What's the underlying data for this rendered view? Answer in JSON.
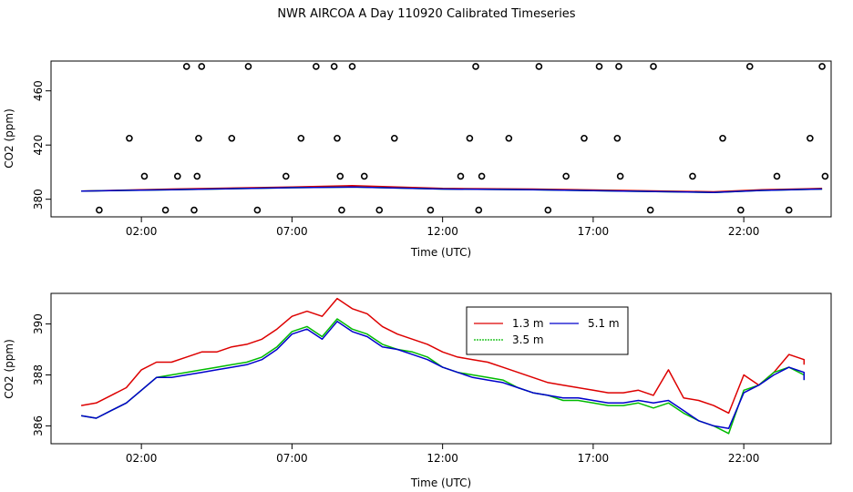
{
  "title": "NWR AIRCOA A  Day 110920  Calibrated Timeseries",
  "colors": {
    "1.3 m": "#dd0000",
    "3.5 m": "#00bb00",
    "5.1 m": "#0000cc",
    "axis": "#000000"
  },
  "chart_data": [
    {
      "type": "scatter",
      "xlabel": "Time (UTC)",
      "ylabel": "CO2 (ppm)",
      "xlim": [
        -1.0,
        24.9
      ],
      "ylim": [
        367,
        482
      ],
      "x_ticks": [
        2,
        7,
        12,
        17,
        22
      ],
      "x_tick_labels": [
        "02:00",
        "07:00",
        "12:00",
        "17:00",
        "22:00"
      ],
      "y_ticks": [
        380,
        420,
        460
      ],
      "y_tick_labels": [
        "380",
        "420",
        "460"
      ],
      "legend": false,
      "grid": false,
      "points": [
        [
          0.6,
          372
        ],
        [
          1.6,
          425
        ],
        [
          2.1,
          397
        ],
        [
          2.8,
          372
        ],
        [
          3.2,
          397
        ],
        [
          3.5,
          478
        ],
        [
          3.75,
          372
        ],
        [
          3.85,
          397
        ],
        [
          3.9,
          425
        ],
        [
          4.0,
          478
        ],
        [
          5.0,
          425
        ],
        [
          5.55,
          478
        ],
        [
          5.85,
          372
        ],
        [
          6.8,
          397
        ],
        [
          7.3,
          425
        ],
        [
          7.8,
          478
        ],
        [
          8.4,
          478
        ],
        [
          8.5,
          425
        ],
        [
          8.6,
          397
        ],
        [
          8.65,
          372
        ],
        [
          9.0,
          478
        ],
        [
          9.4,
          397
        ],
        [
          9.9,
          372
        ],
        [
          10.4,
          425
        ],
        [
          11.6,
          372
        ],
        [
          12.6,
          397
        ],
        [
          12.9,
          425
        ],
        [
          13.1,
          478
        ],
        [
          13.2,
          372
        ],
        [
          13.3,
          397
        ],
        [
          14.2,
          425
        ],
        [
          15.2,
          478
        ],
        [
          15.5,
          372
        ],
        [
          16.1,
          397
        ],
        [
          16.7,
          425
        ],
        [
          17.2,
          478
        ],
        [
          17.8,
          425
        ],
        [
          17.85,
          478
        ],
        [
          17.9,
          397
        ],
        [
          18.9,
          372
        ],
        [
          19.0,
          478
        ],
        [
          20.3,
          397
        ],
        [
          21.3,
          425
        ],
        [
          21.9,
          372
        ],
        [
          22.2,
          478
        ],
        [
          23.1,
          397
        ],
        [
          23.5,
          372
        ],
        [
          24.2,
          425
        ],
        [
          24.6,
          478
        ],
        [
          24.7,
          397
        ]
      ],
      "series": [
        {
          "name": "1.3 m",
          "x": [
            0,
            3,
            7,
            9,
            12,
            15,
            18,
            21,
            22.6,
            24.6
          ],
          "values": [
            386,
            387.5,
            389,
            390,
            388,
            387.5,
            386.5,
            385.5,
            387,
            388
          ]
        },
        {
          "name": "3.5 m",
          "x": [
            0,
            3,
            7,
            9,
            12,
            15,
            18,
            21,
            22.6,
            24.6
          ],
          "values": [
            386,
            387,
            388.5,
            389,
            387.5,
            387,
            386,
            385,
            386.5,
            387.5
          ]
        },
        {
          "name": "5.1 m",
          "x": [
            0,
            3,
            7,
            9,
            12,
            15,
            18,
            21,
            22.6,
            24.6
          ],
          "values": [
            386,
            387,
            388.5,
            389,
            387.5,
            387,
            386,
            385,
            386.5,
            387.5
          ]
        }
      ]
    },
    {
      "type": "line",
      "xlabel": "Time (UTC)",
      "ylabel": "CO2 (ppm)",
      "xlim": [
        -1.0,
        24.9
      ],
      "ylim": [
        385.3,
        391.2
      ],
      "x_ticks": [
        2,
        7,
        12,
        17,
        22
      ],
      "x_tick_labels": [
        "02:00",
        "07:00",
        "12:00",
        "17:00",
        "22:00"
      ],
      "y_ticks": [
        386,
        388,
        390
      ],
      "y_tick_labels": [
        "386",
        "388",
        "390"
      ],
      "legend": true,
      "legend_position": "top-center",
      "grid": false,
      "series": [
        {
          "name": "1.3 m",
          "x": [
            0,
            0.5,
            1,
            1.5,
            2,
            2.5,
            3,
            3.5,
            4,
            4.5,
            5,
            5.5,
            6,
            6.5,
            7,
            7.5,
            8,
            8.5,
            9,
            9.5,
            10,
            10.5,
            11,
            11.5,
            12,
            12.5,
            13,
            13.5,
            14,
            14.5,
            15,
            15.5,
            16,
            16.5,
            17,
            17.5,
            18,
            18.5,
            19,
            19.5,
            20,
            20.5,
            21,
            21.5,
            22,
            22.5,
            23,
            23.5,
            24,
            24
          ],
          "values": [
            386.8,
            386.9,
            387.2,
            387.5,
            388.2,
            388.5,
            388.5,
            388.7,
            388.9,
            388.9,
            389.1,
            389.2,
            389.4,
            389.8,
            390.3,
            390.5,
            390.3,
            391.0,
            390.6,
            390.4,
            389.9,
            389.6,
            389.4,
            389.2,
            388.9,
            388.7,
            388.6,
            388.5,
            388.3,
            388.1,
            387.9,
            387.7,
            387.6,
            387.5,
            387.4,
            387.3,
            387.3,
            387.4,
            387.2,
            388.2,
            387.1,
            387.0,
            386.8,
            386.5,
            388.0,
            387.6,
            388.1,
            388.8,
            388.6,
            388.4
          ]
        },
        {
          "name": "3.5 m",
          "x": [
            0,
            0.5,
            1,
            1.5,
            2,
            2.5,
            3,
            3.5,
            4,
            4.5,
            5,
            5.5,
            6,
            6.5,
            7,
            7.5,
            8,
            8.5,
            9,
            9.5,
            10,
            10.5,
            11,
            11.5,
            12,
            12.5,
            13,
            13.5,
            14,
            14.5,
            15,
            15.5,
            16,
            16.5,
            17,
            17.5,
            18,
            18.5,
            19,
            19.5,
            20,
            20.5,
            21,
            21.5,
            22,
            22.5,
            23,
            23.5,
            24,
            24
          ],
          "values": [
            386.4,
            386.3,
            386.6,
            386.9,
            387.4,
            387.9,
            388.0,
            388.1,
            388.2,
            388.3,
            388.4,
            388.5,
            388.7,
            389.1,
            389.7,
            389.9,
            389.5,
            390.2,
            389.8,
            389.6,
            389.2,
            389.0,
            388.9,
            388.7,
            388.3,
            388.1,
            388.0,
            387.9,
            387.8,
            387.5,
            387.3,
            387.2,
            387.0,
            387.0,
            386.9,
            386.8,
            386.8,
            386.9,
            386.7,
            386.9,
            386.5,
            386.2,
            386.0,
            385.7,
            387.4,
            387.6,
            388.1,
            388.3,
            388.0,
            387.8
          ]
        },
        {
          "name": "5.1 m",
          "x": [
            0,
            0.5,
            1,
            1.5,
            2,
            2.5,
            3,
            3.5,
            4,
            4.5,
            5,
            5.5,
            6,
            6.5,
            7,
            7.5,
            8,
            8.5,
            9,
            9.5,
            10,
            10.5,
            11,
            11.5,
            12,
            12.5,
            13,
            13.5,
            14,
            14.5,
            15,
            15.5,
            16,
            16.5,
            17,
            17.5,
            18,
            18.5,
            19,
            19.5,
            20,
            20.5,
            21,
            21.5,
            22,
            22.5,
            23,
            23.5,
            24,
            24
          ],
          "values": [
            386.4,
            386.3,
            386.6,
            386.9,
            387.4,
            387.9,
            387.9,
            388.0,
            388.1,
            388.2,
            388.3,
            388.4,
            388.6,
            389.0,
            389.6,
            389.8,
            389.4,
            390.1,
            389.7,
            389.5,
            389.1,
            389.0,
            388.8,
            388.6,
            388.3,
            388.1,
            387.9,
            387.8,
            387.7,
            387.5,
            387.3,
            387.2,
            387.1,
            387.1,
            387.0,
            386.9,
            386.9,
            387.0,
            386.9,
            387.0,
            386.6,
            386.2,
            386.0,
            385.9,
            387.3,
            387.6,
            388.0,
            388.3,
            388.1,
            387.8
          ]
        }
      ]
    }
  ]
}
